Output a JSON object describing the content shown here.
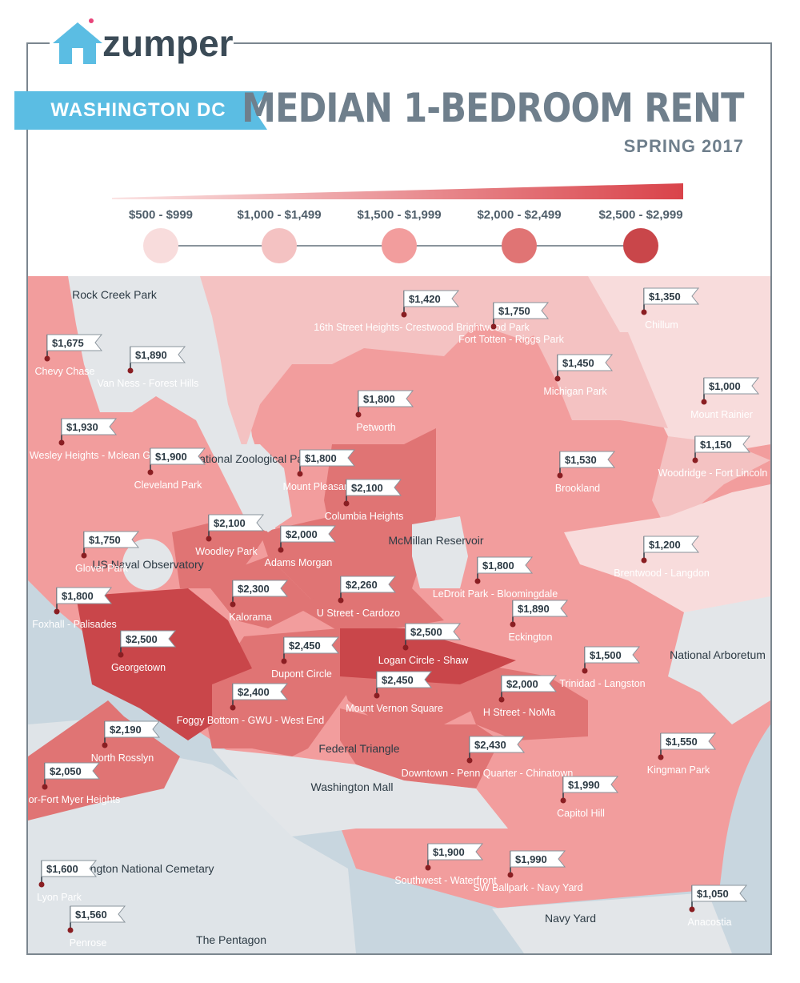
{
  "brand": {
    "name": "zumper",
    "logo_icon": "house-icon"
  },
  "header": {
    "city": "WASHINGTON DC",
    "title": "MEDIAN 1-BEDROOM RENT",
    "subtitle": "SPRING 2017"
  },
  "colors": {
    "water": "#c8d6df",
    "park": "#e3e6e9",
    "tier1": "#f8dcdc",
    "tier2": "#f4c2c2",
    "tier3": "#f29d9d",
    "tier4": "#e07474",
    "tier5": "#c9464a",
    "text_gray": "#6f7f8c",
    "ribbon": "#5bbde3"
  },
  "legend": [
    {
      "label": "$500 - $999",
      "tier": "tier1"
    },
    {
      "label": "$1,000 - $1,499",
      "tier": "tier2"
    },
    {
      "label": "$1,500 - $1,999",
      "tier": "tier3"
    },
    {
      "label": "$2,000 - $2,499",
      "tier": "tier4"
    },
    {
      "label": "$2,500 - $2,999",
      "tier": "tier5"
    }
  ],
  "neighborhoods": [
    {
      "name": "Chevy Chase",
      "price": "$1,675"
    },
    {
      "name": "Van Ness - Forest Hills",
      "price": "$1,890"
    },
    {
      "name": "16th Street Heights- Crestwood Brightwood Park",
      "price": "$1,420"
    },
    {
      "name": "Fort Totten - Riggs Park",
      "price": "$1,750"
    },
    {
      "name": "Chillum",
      "price": "$1,350"
    },
    {
      "name": "Michigan Park",
      "price": "$1,450"
    },
    {
      "name": "Mount Rainier",
      "price": "$1,000"
    },
    {
      "name": "Petworth",
      "price": "$1,800"
    },
    {
      "name": "Cathedral - Wesley Heights - Mclean Gardens",
      "price": "$1,930"
    },
    {
      "name": "Cleveland Park",
      "price": "$1,900"
    },
    {
      "name": "Mount Pleasant",
      "price": "$1,800"
    },
    {
      "name": "Columbia Heights",
      "price": "$2,100"
    },
    {
      "name": "Woodridge - Fort Lincoln",
      "price": "$1,150"
    },
    {
      "name": "Brookland",
      "price": "$1,530"
    },
    {
      "name": "Woodley Park",
      "price": "$2,100"
    },
    {
      "name": "Glover Park",
      "price": "$1,750"
    },
    {
      "name": "Adams Morgan",
      "price": "$2,000"
    },
    {
      "name": "Brentwood - Langdon",
      "price": "$1,200"
    },
    {
      "name": "LeDroit Park - Bloomingdale",
      "price": "$1,800"
    },
    {
      "name": "Foxhall - Palisades",
      "price": "$1,800"
    },
    {
      "name": "Kalorama",
      "price": "$2,300"
    },
    {
      "name": "U Street - Cardozo",
      "price": "$2,260"
    },
    {
      "name": "Eckington",
      "price": "$1,890"
    },
    {
      "name": "Georgetown",
      "price": "$2,500"
    },
    {
      "name": "Logan Circle - Shaw",
      "price": "$2,500"
    },
    {
      "name": "Dupont Circle",
      "price": "$2,450"
    },
    {
      "name": "Trinidad - Langston",
      "price": "$1,500"
    },
    {
      "name": "Mount Vernon Square",
      "price": "$2,450"
    },
    {
      "name": "H Street - NoMa",
      "price": "$2,000"
    },
    {
      "name": "Foggy Bottom - GWU - West End",
      "price": "$2,400"
    },
    {
      "name": "North Rosslyn",
      "price": "$2,190"
    },
    {
      "name": "Downtown - Penn Quarter - Chinatown",
      "price": "$2,430"
    },
    {
      "name": "Kingman Park",
      "price": "$1,550"
    },
    {
      "name": "Radnor-Fort Myer Heights",
      "price": "$2,050"
    },
    {
      "name": "Capitol Hill",
      "price": "$1,990"
    },
    {
      "name": "Lyon Park",
      "price": "$1,600"
    },
    {
      "name": "Southwest - Waterfront",
      "price": "$1,900"
    },
    {
      "name": "SW Ballpark - Navy Yard",
      "price": "$1,990"
    },
    {
      "name": "Anacostia",
      "price": "$1,050"
    },
    {
      "name": "Penrose",
      "price": "$1,560"
    }
  ],
  "landmarks": [
    "Rock Creek Park",
    "National Zoological Park",
    "US Naval Observatory",
    "McMillan Reservoir",
    "National Arboretum",
    "Federal Triangle",
    "Washington Mall",
    "Arlington National Cemetary",
    "The Pentagon",
    "Navy Yard"
  ]
}
